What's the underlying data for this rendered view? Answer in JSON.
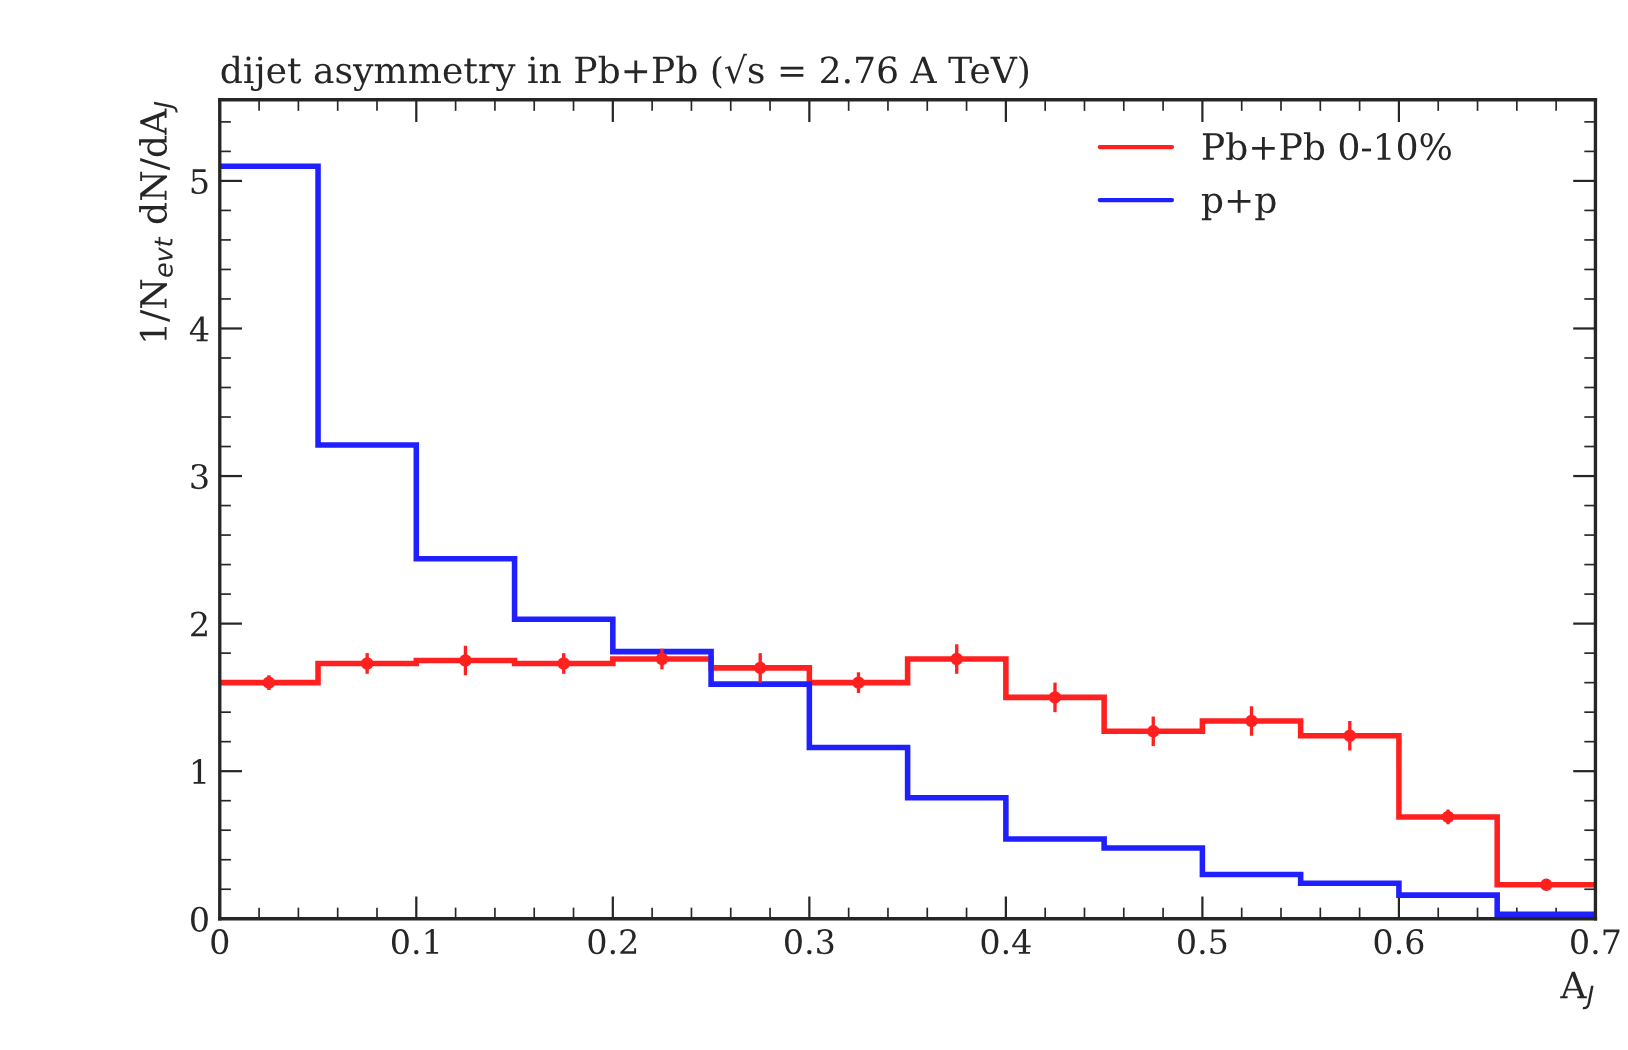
{
  "chart_data": {
    "type": "histogram",
    "title": "dijet asymmetry in Pb+Pb (√s = 2.76 A TeV)",
    "xlabel": "A$_{J}$",
    "ylabel": "1/N$_{evt}$ dN/dA$_{J}$",
    "bins": [
      0,
      0.05,
      0.1,
      0.15,
      0.2,
      0.25,
      0.3,
      0.35,
      0.4,
      0.45,
      0.5,
      0.55,
      0.6,
      0.65,
      0.7
    ],
    "series": [
      {
        "name": "Pb+Pb 0-10%",
        "color": "#ff2020",
        "values": [
          1.6,
          1.73,
          1.75,
          1.73,
          1.76,
          1.7,
          1.6,
          1.76,
          1.5,
          1.27,
          1.34,
          1.24,
          0.69,
          0.23
        ]
      },
      {
        "name": "p+p",
        "color": "#2020ff",
        "values": [
          5.1,
          3.21,
          2.44,
          2.03,
          1.81,
          1.59,
          1.16,
          0.82,
          0.54,
          0.48,
          0.3,
          0.24,
          0.16,
          0.03
        ]
      },
      {
        "type": "scatter",
        "marker": "circle",
        "color": "#ff2020",
        "x": [
          0.025,
          0.075,
          0.125,
          0.175,
          0.225,
          0.275,
          0.325,
          0.375,
          0.425,
          0.475,
          0.525,
          0.575,
          0.625,
          0.675
        ],
        "values": [
          1.6,
          1.73,
          1.75,
          1.73,
          1.76,
          1.7,
          1.6,
          1.76,
          1.5,
          1.27,
          1.34,
          1.24,
          0.69,
          0.23
        ],
        "errors": [
          0.05,
          0.07,
          0.1,
          0.07,
          0.07,
          0.1,
          0.07,
          0.1,
          0.1,
          0.1,
          0.1,
          0.1,
          0.05,
          0.02
        ]
      }
    ],
    "xlim": [
      0,
      0.7
    ],
    "ylim": [
      0,
      5.55
    ],
    "xticks": [
      0,
      0.1,
      0.2,
      0.3,
      0.4,
      0.5,
      0.6,
      0.7
    ],
    "yticks": [
      0,
      1,
      2,
      3,
      4,
      5
    ],
    "legend": "top right",
    "grid": false
  }
}
